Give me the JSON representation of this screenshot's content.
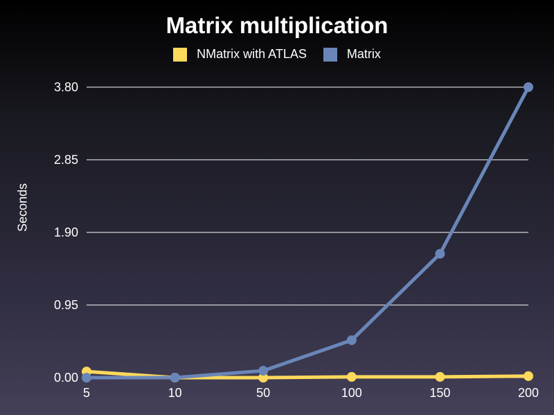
{
  "chart_data": {
    "type": "line",
    "title": "Matrix multiplication",
    "xlabel": "",
    "ylabel": "Seconds",
    "categories": [
      "5",
      "10",
      "50",
      "100",
      "150",
      "200"
    ],
    "y_ticks": [
      "0.00",
      "0.95",
      "1.90",
      "2.85",
      "3.80"
    ],
    "ylim": [
      0,
      3.8
    ],
    "grid": true,
    "legend_position": "top",
    "series": [
      {
        "name": "NMatrix with ATLAS",
        "color": "#fdd95c",
        "values": [
          0.08,
          0.0,
          0.0,
          0.01,
          0.01,
          0.02
        ]
      },
      {
        "name": "Matrix",
        "color": "#6a86b8",
        "values": [
          0.0,
          0.0,
          0.09,
          0.49,
          1.62,
          3.8
        ]
      }
    ]
  }
}
